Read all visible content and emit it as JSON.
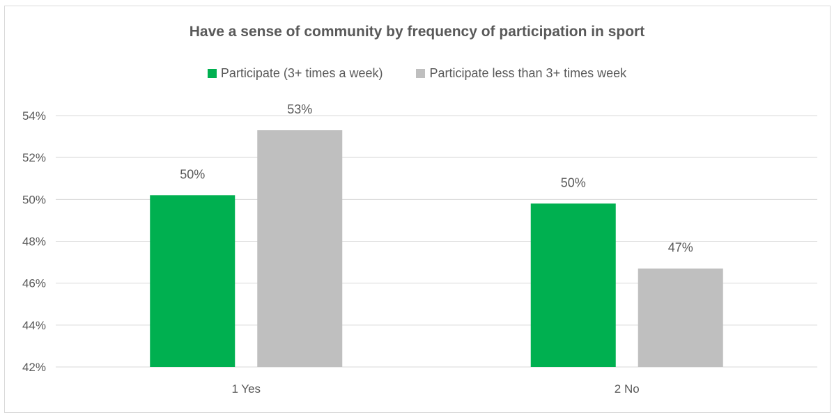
{
  "chart_data": {
    "type": "bar",
    "title": "Have a sense of community by frequency of participation in sport",
    "xlabel": "",
    "ylabel": "",
    "categories": [
      "1 Yes",
      "2 No"
    ],
    "series": [
      {
        "name": "Participate (3+ times a week)",
        "color": "#00b050",
        "values": [
          50.2,
          49.8
        ],
        "data_labels": [
          "50%",
          "50%"
        ]
      },
      {
        "name": "Participate less than 3+ times week",
        "color": "#bfbfbf",
        "values": [
          53.3,
          46.7
        ],
        "data_labels": [
          "53%",
          "47%"
        ]
      }
    ],
    "ylim": [
      42,
      54
    ],
    "yticks": [
      42,
      44,
      46,
      48,
      50,
      52,
      54
    ],
    "ytick_labels": [
      "42%",
      "44%",
      "46%",
      "48%",
      "50%",
      "52%",
      "54%"
    ],
    "grid": true,
    "legend_position": "top"
  }
}
